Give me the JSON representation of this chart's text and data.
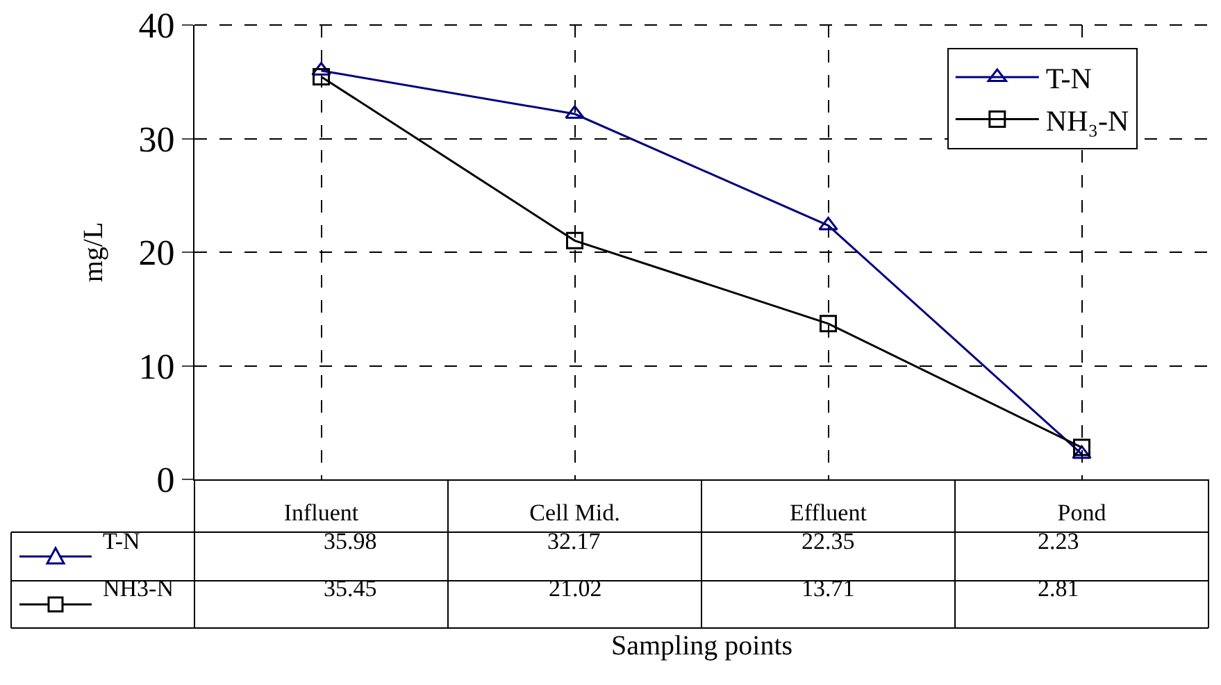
{
  "chart_data": {
    "type": "line",
    "xlabel": "Sampling points",
    "ylabel": "mg/L",
    "categories": [
      "Influent",
      "Cell Mid.",
      "Effluent",
      "Pond"
    ],
    "series": [
      {
        "name": "T-N",
        "color": "#000080",
        "marker": "triangle",
        "values": [
          35.98,
          32.17,
          22.35,
          2.23
        ]
      },
      {
        "name": "NH₃-N",
        "color": "#000000",
        "marker": "square",
        "values": [
          35.45,
          21.02,
          13.71,
          2.81
        ]
      }
    ],
    "annotations": [
      "T-N",
      "NH3-N"
    ],
    "ylim": [
      0,
      40
    ],
    "yticks": [
      0,
      10,
      20,
      30,
      40
    ],
    "grid": true,
    "legend": "top right",
    "line_style": "solid",
    "data_labels": true
  }
}
